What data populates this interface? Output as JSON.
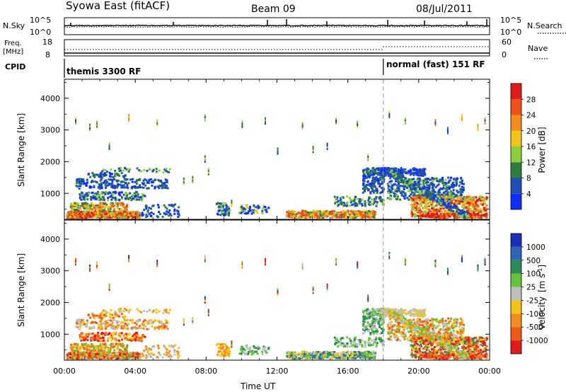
{
  "header": {
    "station": "Syowa East (fitACF)",
    "beam": "Beam 09",
    "date": "08/Jul/2011"
  },
  "strip_top": {
    "left_label": "N.Sky",
    "left_ticks": [
      "10^5",
      "10^0"
    ],
    "right_ticks": [
      "10^5",
      "10^0"
    ],
    "right_label": "N.Search"
  },
  "strip_freq": {
    "left_label_1": "Freq.",
    "left_label_2": "[MHz]",
    "left_ticks": [
      "18",
      "8"
    ],
    "right_ticks": [
      "60",
      "0"
    ],
    "right_label": "Nave"
  },
  "cpid": {
    "label": "CPID",
    "segments": [
      {
        "name": "themis 3300 RF",
        "start_hour": 0
      },
      {
        "name": "normal (fast) 151 RF",
        "start_hour": 18
      }
    ]
  },
  "chart_data": [
    {
      "type": "heatmap",
      "panel": "power",
      "ylabel": "Slant Range [km]",
      "y_ticks": [
        "1000",
        "2000",
        "3000",
        "4000"
      ],
      "ylim": [
        180,
        4600
      ],
      "xlim_hours": [
        0,
        24
      ],
      "colorbar": {
        "label": "Power [dB]",
        "ticks": [
          "4",
          "8",
          "12",
          "16",
          "20",
          "24",
          "28"
        ],
        "colors": [
          "#0f2fff",
          "#1f4fb3",
          "#2e7d3c",
          "#8ccf3c",
          "#f2c419",
          "#f28c1c",
          "#f2501a",
          "#e01b1b"
        ]
      }
    },
    {
      "type": "heatmap",
      "panel": "velocity",
      "ylabel": "Slant Range [km]",
      "y_ticks": [
        "1000",
        "2000",
        "3000",
        "4000"
      ],
      "ylim": [
        180,
        4600
      ],
      "xlim_hours": [
        0,
        24
      ],
      "colorbar": {
        "label": "Velocity",
        "unit": "[m s",
        "unit_sup": "-1",
        "unit_end": "]",
        "ticks": [
          "1000",
          "500",
          "100",
          "25",
          "-25",
          "-100",
          "-500",
          "-1000"
        ],
        "colors": [
          "#1a2fb8",
          "#2f64b8",
          "#2e8a55",
          "#66c23a",
          "#bfbfbf",
          "#f2c419",
          "#f28c1c",
          "#ef5a1a",
          "#e01b1b"
        ]
      }
    }
  ],
  "x_axis": {
    "ticks": [
      "00:00",
      "04:00",
      "08:00",
      "12:00",
      "16:00",
      "20:00",
      "00:00"
    ],
    "label": "Time UT"
  }
}
